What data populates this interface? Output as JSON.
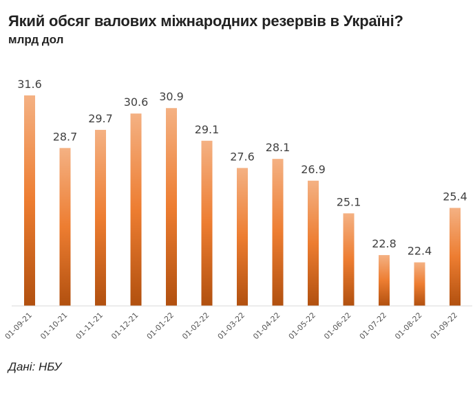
{
  "chart_data": {
    "type": "bar",
    "title": "Який обсяг валових міжнародних резервів в Україні?",
    "subtitle": "млрд дол",
    "source": "Дані: НБУ",
    "xlabel": "",
    "ylabel": "",
    "ylim": [
      20,
      32
    ],
    "grid": false,
    "categories": [
      "01-09-21",
      "01-10-21",
      "01-11-21",
      "01-12-21",
      "01-01-22",
      "01-02-22",
      "01-03-22",
      "01-04-22",
      "01-05-22",
      "01-06-22",
      "01-07-22",
      "01-08-22",
      "01-09-22"
    ],
    "values": [
      31.6,
      28.7,
      29.7,
      30.6,
      30.9,
      29.1,
      27.6,
      28.1,
      26.9,
      25.1,
      22.8,
      22.4,
      25.4
    ],
    "colors": {
      "top": "#f4b183",
      "mid": "#ed7d31",
      "bottom": "#b1500f",
      "axis": "#d9d9d9"
    }
  }
}
